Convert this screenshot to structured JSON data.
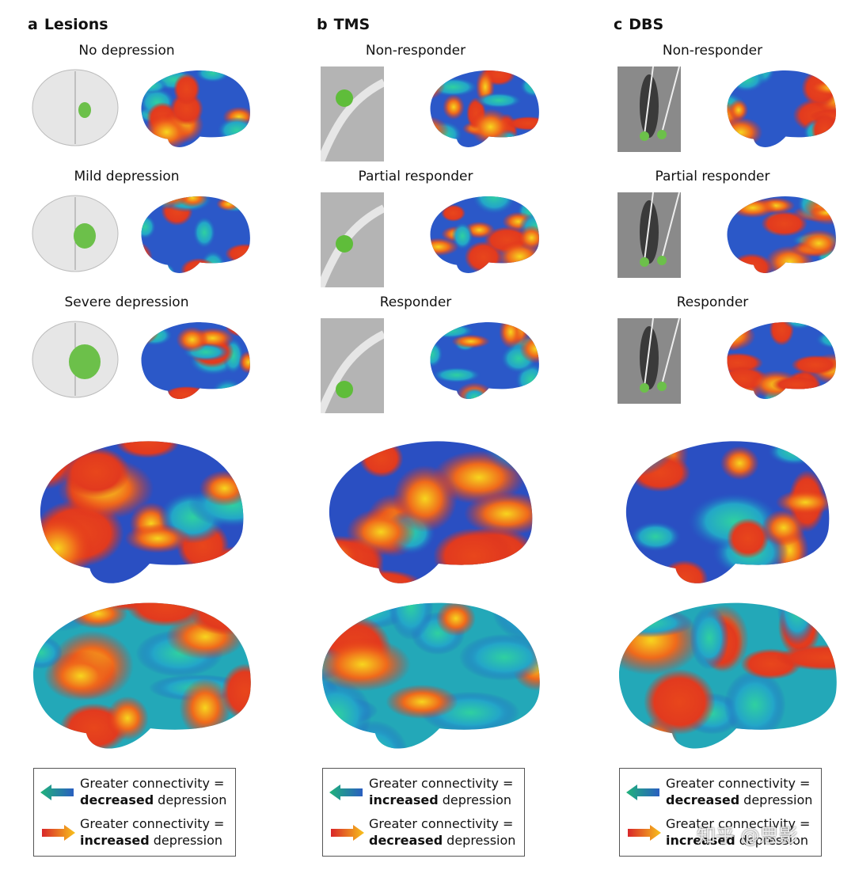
{
  "panels": [
    {
      "letter": "a",
      "title": "Lesions",
      "rows": [
        "No depression",
        "Mild depression",
        "Severe depression"
      ],
      "legend": [
        {
          "text": "Greater connectivity =",
          "bold": "decreased",
          "rest": "depression"
        },
        {
          "text": "Greater connectivity =",
          "bold": "increased",
          "rest": "depression"
        }
      ]
    },
    {
      "letter": "b",
      "title": "TMS",
      "rows": [
        "Non-responder",
        "Partial responder",
        "Responder"
      ],
      "legend": [
        {
          "text": "Greater connectivity =",
          "bold": "increased",
          "rest": "depression"
        },
        {
          "text": "Greater connectivity =",
          "bold": "decreased",
          "rest": "depression"
        }
      ]
    },
    {
      "letter": "c",
      "title": "DBS",
      "rows": [
        "Non-responder",
        "Partial responder",
        "Responder"
      ],
      "legend": [
        {
          "text": "Greater connectivity =",
          "bold": "decreased",
          "rest": "depression"
        },
        {
          "text": "Greater connectivity =",
          "bold": "increased",
          "rest": "depression"
        }
      ]
    }
  ],
  "watermark": "知乎 @思影"
}
